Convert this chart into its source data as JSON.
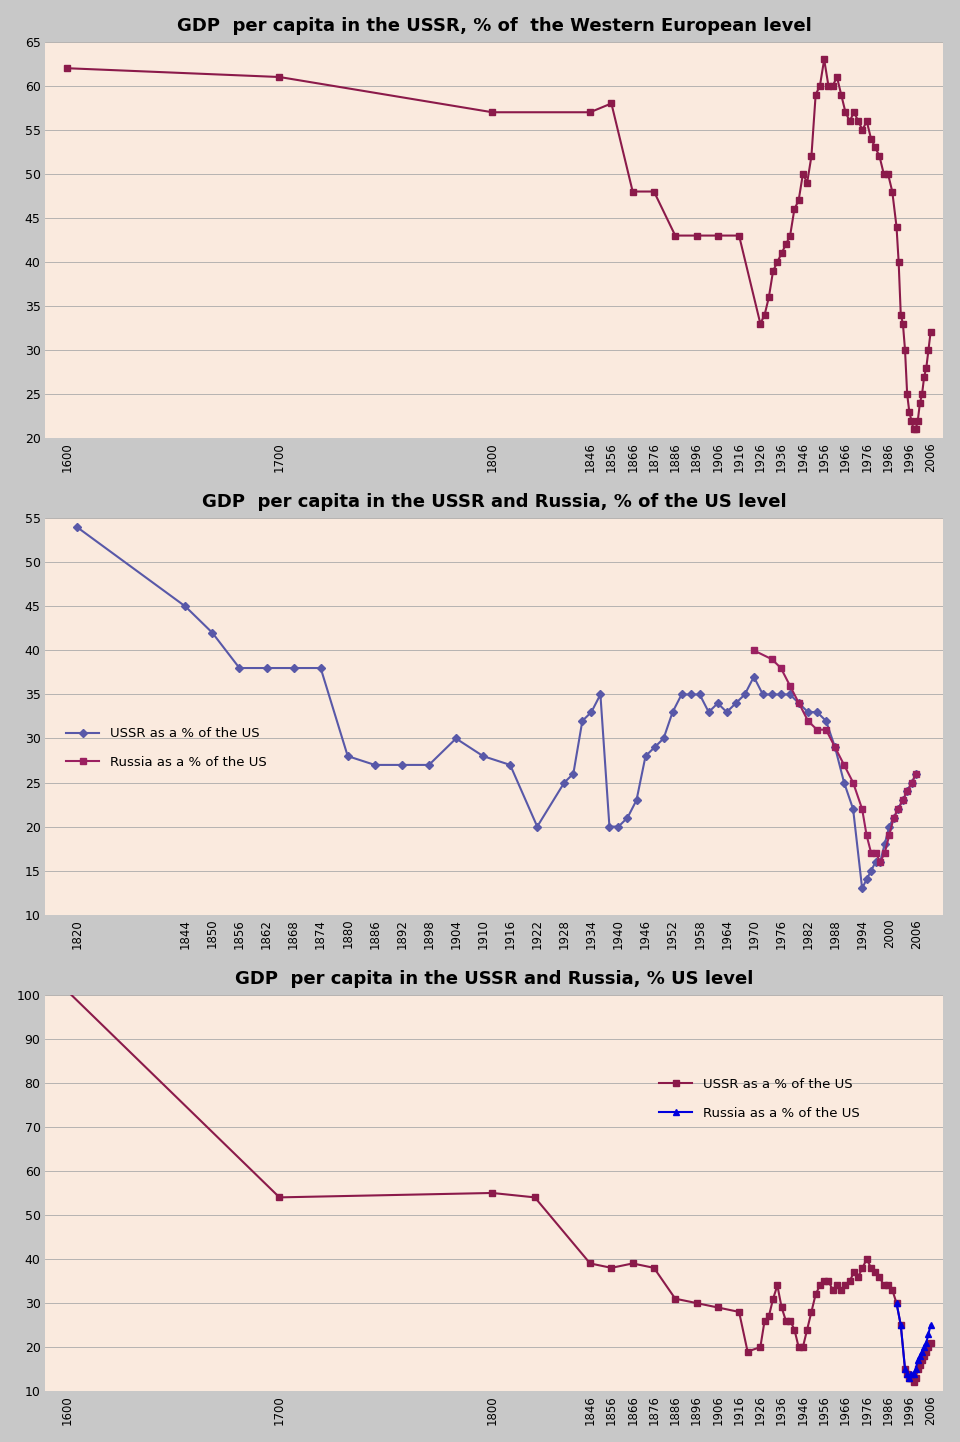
{
  "chart1": {
    "title": "GDP  per capita in the USSR, % of  the Western European level",
    "bg_color": "#faeade",
    "line_color": "#8b1a4a",
    "marker": "s",
    "ylim": [
      20,
      65
    ],
    "yticks": [
      20,
      25,
      30,
      35,
      40,
      45,
      50,
      55,
      60,
      65
    ],
    "xtick_labels": [
      "1600",
      "1700",
      "1800",
      "1846",
      "1856",
      "1866",
      "1876",
      "1886",
      "1896",
      "1906",
      "1916",
      "1926",
      "1936",
      "1946",
      "1956",
      "1966",
      "1976",
      "1986",
      "1996",
      "2006"
    ],
    "data_years": [
      1600,
      1700,
      1800,
      1846,
      1856,
      1866,
      1876,
      1886,
      1896,
      1906,
      1916,
      1926,
      1928,
      1930,
      1932,
      1934,
      1936,
      1938,
      1940,
      1942,
      1944,
      1946,
      1948,
      1950,
      1952,
      1954,
      1956,
      1958,
      1960,
      1962,
      1964,
      1966,
      1968,
      1970,
      1972,
      1974,
      1976,
      1978,
      1980,
      1982,
      1984,
      1986,
      1988,
      1990,
      1991,
      1992,
      1993,
      1994,
      1995,
      1996,
      1997,
      1998,
      1999,
      2000,
      2001,
      2002,
      2003,
      2004,
      2005,
      2006
    ],
    "data_vals": [
      62,
      61,
      57,
      57,
      58,
      48,
      48,
      43,
      43,
      43,
      43,
      33,
      34,
      36,
      39,
      40,
      41,
      42,
      43,
      46,
      47,
      50,
      49,
      52,
      59,
      60,
      63,
      60,
      60,
      61,
      59,
      57,
      56,
      57,
      56,
      55,
      56,
      54,
      53,
      52,
      50,
      50,
      48,
      44,
      40,
      34,
      33,
      30,
      25,
      23,
      22,
      21,
      21,
      22,
      24,
      25,
      27,
      28,
      30,
      32
    ],
    "xlim_min": 1590,
    "xlim_max": 2012
  },
  "chart2": {
    "title": "GDP  per capita in the USSR and Russia, % of the US level",
    "bg_color": "#faeade",
    "line1_color": "#5858a8",
    "line2_color": "#9b2060",
    "marker1": "D",
    "marker2": "s",
    "ylim": [
      10,
      55
    ],
    "yticks": [
      10,
      15,
      20,
      25,
      30,
      35,
      40,
      45,
      50,
      55
    ],
    "xtick_labels": [
      "1820",
      "1844",
      "1850",
      "1856",
      "1862",
      "1868",
      "1874",
      "1880",
      "1886",
      "1892",
      "1898",
      "1904",
      "1910",
      "1916",
      "1922",
      "1928",
      "1934",
      "1940",
      "1946",
      "1952",
      "1958",
      "1964",
      "1970",
      "1976",
      "1982",
      "1988",
      "1994",
      "2000",
      "2006"
    ],
    "legend1": "USSR as a % of the US",
    "legend2": "Russia as a % of the US",
    "ussr_years": [
      1820,
      1844,
      1850,
      1856,
      1862,
      1868,
      1874,
      1880,
      1886,
      1892,
      1898,
      1904,
      1910,
      1916,
      1922,
      1928,
      1930,
      1932,
      1934,
      1936,
      1938,
      1940,
      1942,
      1944,
      1946,
      1948,
      1950,
      1952,
      1954,
      1956,
      1958,
      1960,
      1962,
      1964,
      1966,
      1968,
      1970,
      1972,
      1974,
      1976,
      1978,
      1980,
      1982,
      1984,
      1986,
      1988,
      1990,
      1992,
      1994,
      1995,
      1996,
      1997,
      1998,
      1999,
      2000,
      2001,
      2002,
      2003,
      2004,
      2005,
      2006
    ],
    "ussr_vals": [
      54,
      45,
      42,
      38,
      38,
      38,
      38,
      28,
      27,
      27,
      27,
      30,
      28,
      27,
      20,
      25,
      26,
      32,
      33,
      35,
      20,
      20,
      21,
      23,
      28,
      29,
      30,
      33,
      35,
      35,
      35,
      33,
      34,
      33,
      34,
      35,
      37,
      35,
      35,
      35,
      35,
      34,
      33,
      33,
      32,
      29,
      25,
      22,
      13,
      14,
      15,
      16,
      16,
      18,
      20,
      21,
      22,
      23,
      24,
      25,
      26
    ],
    "russia_years": [
      1970,
      1974,
      1976,
      1978,
      1980,
      1982,
      1984,
      1986,
      1988,
      1990,
      1992,
      1994,
      1995,
      1996,
      1997,
      1998,
      1999,
      2000,
      2001,
      2002,
      2003,
      2004,
      2005,
      2006
    ],
    "russia_vals": [
      40,
      39,
      38,
      36,
      34,
      32,
      31,
      31,
      29,
      27,
      25,
      22,
      19,
      17,
      17,
      16,
      17,
      19,
      21,
      22,
      23,
      24,
      25,
      26
    ],
    "xlim_min": 1813,
    "xlim_max": 2012
  },
  "chart3": {
    "title": "GDP  per capita in the USSR and Russia, % US level",
    "bg_color": "#faeade",
    "line1_color": "#8b1a4a",
    "line2_color": "#0000dd",
    "marker1": "s",
    "marker2": "^",
    "ylim": [
      10,
      100
    ],
    "yticks": [
      10,
      20,
      30,
      40,
      50,
      60,
      70,
      80,
      90,
      100
    ],
    "xtick_labels": [
      "1600",
      "1700",
      "1800",
      "1846",
      "1856",
      "1866",
      "1876",
      "1886",
      "1896",
      "1906",
      "1916",
      "1926",
      "1936",
      "1946",
      "1956",
      "1966",
      "1976",
      "1986",
      "1996",
      "2006"
    ],
    "legend1": "USSR as a % of the US",
    "legend2": "Russia as a % of the US",
    "ussr_years": [
      1600,
      1700,
      1800,
      1820,
      1846,
      1856,
      1866,
      1876,
      1886,
      1896,
      1906,
      1916,
      1920,
      1926,
      1928,
      1930,
      1932,
      1934,
      1936,
      1938,
      1940,
      1942,
      1944,
      1946,
      1948,
      1950,
      1952,
      1954,
      1956,
      1958,
      1960,
      1962,
      1964,
      1966,
      1968,
      1970,
      1972,
      1974,
      1976,
      1978,
      1980,
      1982,
      1984,
      1986,
      1988,
      1990,
      1992,
      1994,
      1995,
      1996,
      1997,
      1998,
      1999,
      2000,
      2001,
      2002,
      2003,
      2004,
      2005,
      2006
    ],
    "ussr_vals": [
      101,
      54,
      55,
      54,
      39,
      38,
      39,
      38,
      31,
      30,
      29,
      28,
      19,
      20,
      26,
      27,
      31,
      34,
      29,
      26,
      26,
      24,
      20,
      20,
      24,
      28,
      32,
      34,
      35,
      35,
      33,
      34,
      33,
      34,
      35,
      37,
      36,
      38,
      40,
      38,
      37,
      36,
      34,
      34,
      33,
      30,
      25,
      15,
      14,
      13,
      13,
      12,
      13,
      15,
      16,
      17,
      18,
      19,
      20,
      21
    ],
    "russia_years": [
      1990,
      1992,
      1994,
      1995,
      1996,
      1997,
      1998,
      1999,
      2000,
      2001,
      2002,
      2003,
      2004,
      2005,
      2006
    ],
    "russia_vals": [
      30,
      25,
      15,
      14,
      13,
      14,
      14,
      15,
      17,
      18,
      19,
      20,
      21,
      23,
      25
    ],
    "xlim_min": 1590,
    "xlim_max": 2012
  }
}
